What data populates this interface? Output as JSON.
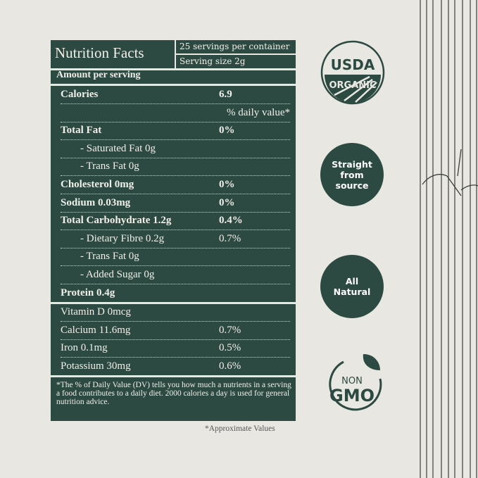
{
  "header": {
    "title": "Nutrition Facts",
    "servings": "25 servings per container",
    "serving_size": "Serving size 2g",
    "amount": "Amount per serving"
  },
  "rows": [
    {
      "label": "Calories",
      "value": "6.9",
      "bold": true
    },
    {
      "label": "",
      "value": "% daily value*"
    },
    {
      "label": "Total Fat",
      "value": "0%",
      "bold": true
    },
    {
      "label": "- Saturated Fat 0g",
      "value": "",
      "indent": true
    },
    {
      "label": "- Trans Fat 0g",
      "value": "",
      "indent": true
    },
    {
      "label": "Cholesterol 0mg",
      "value": "0%",
      "bold": true
    },
    {
      "label": "Sodium 0.03mg",
      "value": "0%",
      "bold": true
    },
    {
      "label": "Total Carbohydrate 1.2g",
      "value": "0.4%",
      "bold": true
    },
    {
      "label": "- Dietary Fibre 0.2g",
      "value": "0.7%",
      "indent": true
    },
    {
      "label": "- Trans Fat 0g",
      "value": "",
      "indent": true
    },
    {
      "label": "- Added Sugar 0g",
      "value": "",
      "indent": true
    },
    {
      "label": "Protein 0.4g",
      "value": "",
      "bold": true
    }
  ],
  "minerals": [
    {
      "label": "Vitamin D 0mcg",
      "value": ""
    },
    {
      "label": "Calcium 11.6mg",
      "value": "0.7%"
    },
    {
      "label": "Iron 0.1mg",
      "value": "0.5%"
    },
    {
      "label": "Potassium 30mg",
      "value": "0.6%"
    }
  ],
  "footnote": "*The % of Daily Value (DV) tells you how much a nutrients in a serving a food contributes to a daily diet. 2000 calories a day is used for general nutrition advice.",
  "approx": "*Approximate Values",
  "badges": {
    "usda_top": "USDA",
    "usda_bottom": "ORGANIC",
    "straight": "Straight from source",
    "natural": "All Natural",
    "non": "NON",
    "gmo": "GMO"
  },
  "colors": {
    "green": "#2c4a41",
    "background": "#e9e7e2"
  }
}
